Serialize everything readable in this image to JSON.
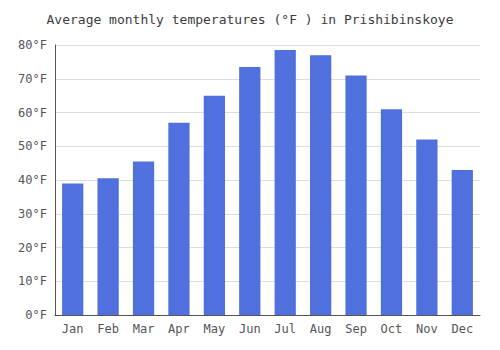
{
  "chart_data": {
    "type": "bar",
    "title": "Average monthly temperatures (°F ) in Prishibinskoye",
    "categories": [
      "Jan",
      "Feb",
      "Mar",
      "Apr",
      "May",
      "Jun",
      "Jul",
      "Aug",
      "Sep",
      "Oct",
      "Nov",
      "Dec"
    ],
    "values": [
      39,
      40.5,
      45.5,
      57,
      65,
      73.5,
      78.5,
      77,
      71,
      61,
      52,
      43
    ],
    "ylim": [
      0,
      80
    ],
    "yticks": [
      {
        "value": 0,
        "label": "0°F"
      },
      {
        "value": 10,
        "label": "10°F"
      },
      {
        "value": 20,
        "label": "20°F"
      },
      {
        "value": 30,
        "label": "30°F"
      },
      {
        "value": 40,
        "label": "40°F"
      },
      {
        "value": 50,
        "label": "50°F"
      },
      {
        "value": 60,
        "label": "60°F"
      },
      {
        "value": 70,
        "label": "70°F"
      },
      {
        "value": 80,
        "label": "80°F"
      }
    ],
    "grid": true
  }
}
